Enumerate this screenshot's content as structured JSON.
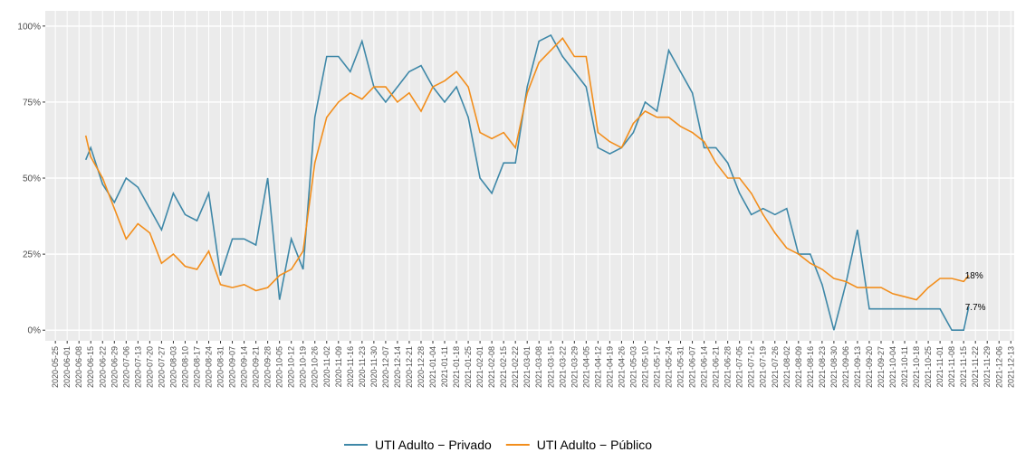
{
  "chart_data": {
    "type": "line",
    "x": [
      "2020-06-12",
      "2020-06-15",
      "2020-06-22",
      "2020-06-29",
      "2020-07-06",
      "2020-07-13",
      "2020-07-20",
      "2020-07-27",
      "2020-08-03",
      "2020-08-10",
      "2020-08-17",
      "2020-08-24",
      "2020-08-31",
      "2020-09-07",
      "2020-09-14",
      "2020-09-21",
      "2020-09-28",
      "2020-10-05",
      "2020-10-12",
      "2020-10-19",
      "2020-10-26",
      "2020-11-02",
      "2020-11-09",
      "2020-11-16",
      "2020-11-23",
      "2020-11-30",
      "2020-12-07",
      "2020-12-14",
      "2020-12-21",
      "2020-12-28",
      "2021-01-04",
      "2021-01-11",
      "2021-01-18",
      "2021-01-25",
      "2021-02-01",
      "2021-02-08",
      "2021-02-15",
      "2021-02-22",
      "2021-03-01",
      "2021-03-08",
      "2021-03-15",
      "2021-03-22",
      "2021-03-29",
      "2021-04-05",
      "2021-04-12",
      "2021-04-19",
      "2021-04-26",
      "2021-05-03",
      "2021-05-10",
      "2021-05-17",
      "2021-05-24",
      "2021-05-31",
      "2021-06-07",
      "2021-06-14",
      "2021-06-21",
      "2021-06-28",
      "2021-07-05",
      "2021-07-12",
      "2021-07-19",
      "2021-07-26",
      "2021-08-02",
      "2021-08-09",
      "2021-08-16",
      "2021-08-23",
      "2021-08-30",
      "2021-09-06",
      "2021-09-13",
      "2021-09-20",
      "2021-09-27",
      "2021-10-04",
      "2021-10-11",
      "2021-10-18",
      "2021-10-25",
      "2021-11-01",
      "2021-11-08",
      "2021-11-15",
      "2021-11-18"
    ],
    "series": [
      {
        "name": "UTI Adulto − Privado",
        "color": "#3f88a8",
        "values": [
          56,
          60,
          48,
          42,
          50,
          47,
          40,
          33,
          45,
          38,
          36,
          45,
          18,
          30,
          30,
          28,
          50,
          10,
          30,
          20,
          70,
          90,
          90,
          85,
          95,
          80,
          75,
          80,
          85,
          87,
          80,
          75,
          80,
          70,
          50,
          45,
          55,
          55,
          80,
          95,
          97,
          90,
          85,
          80,
          60,
          58,
          60,
          65,
          75,
          72,
          92,
          85,
          78,
          60,
          60,
          55,
          45,
          38,
          40,
          38,
          40,
          25,
          25,
          15,
          0,
          15,
          33,
          7,
          7,
          7,
          7,
          7,
          7,
          7,
          0,
          0,
          7.7
        ]
      },
      {
        "name": "UTI Adulto − Público",
        "color": "#f28e1c",
        "values": [
          64,
          57,
          50,
          40,
          30,
          35,
          32,
          22,
          25,
          21,
          20,
          26,
          15,
          14,
          15,
          13,
          14,
          18,
          20,
          26,
          55,
          70,
          75,
          78,
          76,
          80,
          80,
          75,
          78,
          72,
          80,
          82,
          85,
          80,
          65,
          63,
          65,
          60,
          78,
          88,
          92,
          96,
          90,
          90,
          65,
          62,
          60,
          68,
          72,
          70,
          70,
          67,
          65,
          62,
          55,
          50,
          50,
          45,
          38,
          32,
          27,
          25,
          22,
          20,
          17,
          16,
          14,
          14,
          14,
          12,
          11,
          10,
          14,
          17,
          17,
          16,
          18
        ]
      }
    ],
    "annotations": [
      {
        "text": "18%",
        "x": "2021-11-18",
        "y": 18
      },
      {
        "text": "7.7%",
        "x": "2021-11-18",
        "y": 7.7
      }
    ],
    "xlim": [
      "2020-05-19",
      "2021-12-15"
    ],
    "xticks": [
      "2020-05-25",
      "2020-06-01",
      "2020-06-08",
      "2020-06-15",
      "2020-06-22",
      "2020-06-29",
      "2020-07-06",
      "2020-07-13",
      "2020-07-20",
      "2020-07-27",
      "2020-08-03",
      "2020-08-10",
      "2020-08-17",
      "2020-08-24",
      "2020-08-31",
      "2020-09-07",
      "2020-09-14",
      "2020-09-21",
      "2020-09-28",
      "2020-10-05",
      "2020-10-12",
      "2020-10-19",
      "2020-10-26",
      "2020-11-02",
      "2020-11-09",
      "2020-11-16",
      "2020-11-23",
      "2020-11-30",
      "2020-12-07",
      "2020-12-14",
      "2020-12-21",
      "2020-12-28",
      "2021-01-04",
      "2021-01-11",
      "2021-01-18",
      "2021-01-25",
      "2021-02-01",
      "2021-02-08",
      "2021-02-15",
      "2021-02-22",
      "2021-03-01",
      "2021-03-08",
      "2021-03-15",
      "2021-03-22",
      "2021-03-29",
      "2021-04-05",
      "2021-04-12",
      "2021-04-19",
      "2021-04-26",
      "2021-05-03",
      "2021-05-10",
      "2021-05-17",
      "2021-05-24",
      "2021-05-31",
      "2021-06-07",
      "2021-06-14",
      "2021-06-21",
      "2021-06-28",
      "2021-07-05",
      "2021-07-12",
      "2021-07-19",
      "2021-07-26",
      "2021-08-02",
      "2021-08-09",
      "2021-08-16",
      "2021-08-23",
      "2021-08-30",
      "2021-09-06",
      "2021-09-13",
      "2021-09-20",
      "2021-09-27",
      "2021-10-04",
      "2021-10-11",
      "2021-10-18",
      "2021-10-25",
      "2021-11-01",
      "2021-11-08",
      "2021-11-15",
      "2021-11-22",
      "2021-11-29",
      "2021-12-06",
      "2021-12-13"
    ],
    "ylim": [
      -3.5,
      105
    ],
    "yticks": [
      {
        "value": 0,
        "label": "0%"
      },
      {
        "value": 25,
        "label": "25%"
      },
      {
        "value": 50,
        "label": "50%"
      },
      {
        "value": 75,
        "label": "75%"
      },
      {
        "value": 100,
        "label": "100%"
      }
    ],
    "grid": true,
    "legend": "bottom"
  }
}
